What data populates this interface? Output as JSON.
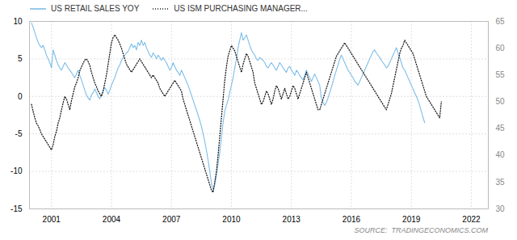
{
  "chart_data": {
    "type": "line",
    "xlim": [
      1999.9,
      2022.85
    ],
    "xticks": [
      2001,
      2004,
      2007,
      2010,
      2013,
      2016,
      2019,
      2022
    ],
    "ylim": [
      -15,
      10
    ],
    "yticks": [
      -15,
      -10,
      -5,
      0,
      5,
      10
    ],
    "y2lim": [
      30,
      65
    ],
    "y2ticks": [
      30,
      35,
      40,
      45,
      50,
      55,
      60,
      65
    ],
    "grid": true,
    "legend": "upper left",
    "annotations": [
      "SOURCE:  TRADINGECONOMICS.COM"
    ],
    "series": [
      {
        "name": "US RETAIL SALES YOY",
        "color": "#7dbde8",
        "line_style": "solid",
        "x": [
          2000,
          2000.0833,
          2000.1667,
          2000.25,
          2000.3333,
          2000.4167,
          2000.5,
          2000.5833,
          2000.6667,
          2000.75,
          2000.8333,
          2000.9167,
          2001,
          2001.0833,
          2001.1667,
          2001.25,
          2001.3333,
          2001.4167,
          2001.5,
          2001.5833,
          2001.6667,
          2001.75,
          2001.8333,
          2001.9167,
          2002,
          2002.0833,
          2002.1667,
          2002.25,
          2002.3333,
          2002.4167,
          2002.5,
          2002.5833,
          2002.6667,
          2002.75,
          2002.8333,
          2002.9167,
          2003,
          2003.0833,
          2003.1667,
          2003.25,
          2003.3333,
          2003.4167,
          2003.5,
          2003.5833,
          2003.6667,
          2003.75,
          2003.8333,
          2003.9167,
          2004,
          2004.0833,
          2004.1667,
          2004.25,
          2004.3333,
          2004.4167,
          2004.5,
          2004.5833,
          2004.6667,
          2004.75,
          2004.8333,
          2004.9167,
          2005,
          2005.0833,
          2005.1667,
          2005.25,
          2005.3333,
          2005.4167,
          2005.5,
          2005.5833,
          2005.6667,
          2005.75,
          2005.8333,
          2005.9167,
          2006,
          2006.0833,
          2006.1667,
          2006.25,
          2006.3333,
          2006.4167,
          2006.5,
          2006.5833,
          2006.6667,
          2006.75,
          2006.8333,
          2006.9167,
          2007,
          2007.0833,
          2007.1667,
          2007.25,
          2007.3333,
          2007.4167,
          2007.5,
          2007.5833,
          2007.6667,
          2007.75,
          2007.8333,
          2007.9167,
          2008,
          2008.0833,
          2008.1667,
          2008.25,
          2008.3333,
          2008.4167,
          2008.5,
          2008.5833,
          2008.6667,
          2008.75,
          2008.8333,
          2008.9167,
          2009,
          2009.0833,
          2009.1667,
          2009.25,
          2009.3333,
          2009.4167,
          2009.5,
          2009.5833,
          2009.6667,
          2009.75,
          2009.8333,
          2009.9167,
          2010,
          2010.0833,
          2010.1667,
          2010.25,
          2010.3333,
          2010.4167,
          2010.5,
          2010.5833,
          2010.6667,
          2010.75,
          2010.8333,
          2010.9167,
          2011,
          2011.0833,
          2011.1667,
          2011.25,
          2011.3333,
          2011.4167,
          2011.5,
          2011.5833,
          2011.6667,
          2011.75,
          2011.8333,
          2011.9167,
          2012,
          2012.0833,
          2012.1667,
          2012.25,
          2012.3333,
          2012.4167,
          2012.5,
          2012.5833,
          2012.6667,
          2012.75,
          2012.8333,
          2012.9167,
          2013,
          2013.0833,
          2013.1667,
          2013.25,
          2013.3333,
          2013.4167,
          2013.5,
          2013.5833,
          2013.6667,
          2013.75,
          2013.8333,
          2013.9167,
          2014,
          2014.0833,
          2014.1667,
          2014.25,
          2014.3333,
          2014.4167,
          2014.5,
          2014.5833,
          2014.6667,
          2014.75,
          2014.8333,
          2014.9167,
          2015,
          2015.0833,
          2015.1667,
          2015.25,
          2015.3333,
          2015.4167,
          2015.5,
          2015.5833,
          2015.6667,
          2015.75,
          2015.8333,
          2015.9167,
          2016,
          2016.0833,
          2016.1667,
          2016.25,
          2016.3333,
          2016.4167,
          2016.5,
          2016.5833,
          2016.6667,
          2016.75,
          2016.8333,
          2016.9167,
          2017,
          2017.0833,
          2017.1667,
          2017.25,
          2017.3333,
          2017.4167,
          2017.5,
          2017.5833,
          2017.6667,
          2017.75,
          2017.8333,
          2017.9167,
          2018,
          2018.0833,
          2018.1667,
          2018.25,
          2018.3333,
          2018.4167,
          2018.5,
          2018.5833,
          2018.6667,
          2018.75,
          2018.8333,
          2018.9167,
          2019,
          2019.0833,
          2019.1667,
          2019.25,
          2019.3333,
          2019.4167,
          2019.5,
          2019.5833,
          2019.6667
        ],
        "values": [
          9.8,
          9.2,
          8.5,
          7.8,
          7.2,
          6.8,
          6.5,
          6.8,
          6.2,
          5.5,
          5.0,
          4.5,
          3.8,
          6.2,
          5.5,
          4.8,
          4.2,
          3.8,
          3.5,
          4.0,
          4.5,
          4.2,
          3.8,
          3.5,
          3.2,
          2.8,
          2.5,
          3.0,
          3.5,
          2.8,
          2.2,
          1.5,
          0.8,
          0.2,
          -0.2,
          -0.5,
          0.2,
          0.5,
          1.0,
          0.5,
          0.0,
          -0.3,
          0.2,
          0.8,
          1.2,
          0.8,
          0.3,
          0.8,
          1.5,
          2.0,
          2.5,
          3.2,
          3.8,
          4.2,
          4.8,
          5.2,
          5.5,
          5.8,
          6.0,
          6.5,
          7.0,
          6.5,
          6.8,
          6.2,
          7.2,
          6.8,
          7.5,
          6.8,
          7.2,
          6.5,
          6.0,
          5.5,
          5.2,
          5.8,
          5.5,
          5.0,
          5.5,
          5.2,
          4.8,
          5.2,
          4.8,
          4.5,
          4.0,
          3.5,
          3.8,
          4.5,
          4.0,
          3.5,
          3.2,
          2.8,
          3.5,
          3.0,
          2.5,
          2.0,
          1.5,
          0.8,
          0.2,
          -0.5,
          -1.2,
          -1.8,
          -2.5,
          -3.2,
          -4.0,
          -5.0,
          -6.0,
          -7.2,
          -8.5,
          -10.0,
          -11.5,
          -12.5,
          -11.8,
          -10.5,
          -9.0,
          -7.5,
          -5.5,
          -3.5,
          -2.0,
          -1.2,
          -0.5,
          0.5,
          1.5,
          2.5,
          3.8,
          5.0,
          6.5,
          7.5,
          8.5,
          7.5,
          7.8,
          8.2,
          7.5,
          6.8,
          6.2,
          5.8,
          5.5,
          5.0,
          4.8,
          5.2,
          5.0,
          4.8,
          4.5,
          4.0,
          3.8,
          4.2,
          4.5,
          4.2,
          3.8,
          3.5,
          4.0,
          4.5,
          4.2,
          3.8,
          3.5,
          3.2,
          3.8,
          4.0,
          3.5,
          3.2,
          2.8,
          3.5,
          3.2,
          2.8,
          2.5,
          2.2,
          2.8,
          3.5,
          3.0,
          2.5,
          2.0,
          2.5,
          3.0,
          2.5,
          2.0,
          1.5,
          -0.2,
          -0.8,
          -1.2,
          -0.8,
          -0.2,
          0.5,
          1.2,
          2.0,
          2.8,
          3.5,
          4.2,
          5.0,
          5.5,
          5.0,
          4.5,
          4.0,
          3.5,
          3.2,
          2.8,
          2.5,
          2.0,
          1.8,
          1.5,
          2.0,
          2.5,
          3.0,
          3.5,
          4.0,
          4.5,
          5.0,
          5.5,
          6.0,
          6.2,
          5.8,
          5.5,
          5.2,
          4.8,
          4.5,
          4.2,
          3.8,
          4.0,
          4.5,
          5.0,
          5.5,
          6.0,
          6.5,
          5.8,
          5.2,
          4.5,
          3.8,
          3.5,
          3.0,
          2.5,
          2.0,
          1.5,
          1.0,
          0.5,
          0.0,
          -0.5,
          -1.2,
          -2.0,
          -2.8,
          -3.5
        ]
      },
      {
        "name": "US ISM PURCHASING MANAGER...",
        "color": "#1a1a1a",
        "line_style": "dotted",
        "axis": "y2",
        "x": [
          2000,
          2000.0833,
          2000.1667,
          2000.25,
          2000.3333,
          2000.4167,
          2000.5,
          2000.5833,
          2000.6667,
          2000.75,
          2000.8333,
          2000.9167,
          2001,
          2001.0833,
          2001.1667,
          2001.25,
          2001.3333,
          2001.4167,
          2001.5,
          2001.5833,
          2001.6667,
          2001.75,
          2001.8333,
          2001.9167,
          2002,
          2002.0833,
          2002.1667,
          2002.25,
          2002.3333,
          2002.4167,
          2002.5,
          2002.5833,
          2002.6667,
          2002.75,
          2002.8333,
          2002.9167,
          2003,
          2003.0833,
          2003.1667,
          2003.25,
          2003.3333,
          2003.4167,
          2003.5,
          2003.5833,
          2003.6667,
          2003.75,
          2003.8333,
          2003.9167,
          2004,
          2004.0833,
          2004.1667,
          2004.25,
          2004.3333,
          2004.4167,
          2004.5,
          2004.5833,
          2004.6667,
          2004.75,
          2004.8333,
          2004.9167,
          2005,
          2005.0833,
          2005.1667,
          2005.25,
          2005.3333,
          2005.4167,
          2005.5,
          2005.5833,
          2005.6667,
          2005.75,
          2005.8333,
          2005.9167,
          2006,
          2006.0833,
          2006.1667,
          2006.25,
          2006.3333,
          2006.4167,
          2006.5,
          2006.5833,
          2006.6667,
          2006.75,
          2006.8333,
          2006.9167,
          2007,
          2007.0833,
          2007.1667,
          2007.25,
          2007.3333,
          2007.4167,
          2007.5,
          2007.5833,
          2007.6667,
          2007.75,
          2007.8333,
          2007.9167,
          2008,
          2008.0833,
          2008.1667,
          2008.25,
          2008.3333,
          2008.4167,
          2008.5,
          2008.5833,
          2008.6667,
          2008.75,
          2008.8333,
          2008.9167,
          2009,
          2009.0833,
          2009.1667,
          2009.25,
          2009.3333,
          2009.4167,
          2009.5,
          2009.5833,
          2009.6667,
          2009.75,
          2009.8333,
          2009.9167,
          2010,
          2010.0833,
          2010.1667,
          2010.25,
          2010.3333,
          2010.4167,
          2010.5,
          2010.5833,
          2010.6667,
          2010.75,
          2010.8333,
          2010.9167,
          2011,
          2011.0833,
          2011.1667,
          2011.25,
          2011.3333,
          2011.4167,
          2011.5,
          2011.5833,
          2011.6667,
          2011.75,
          2011.8333,
          2011.9167,
          2012,
          2012.0833,
          2012.1667,
          2012.25,
          2012.3333,
          2012.4167,
          2012.5,
          2012.5833,
          2012.6667,
          2012.75,
          2012.8333,
          2012.9167,
          2013,
          2013.0833,
          2013.1667,
          2013.25,
          2013.3333,
          2013.4167,
          2013.5,
          2013.5833,
          2013.6667,
          2013.75,
          2013.8333,
          2013.9167,
          2014,
          2014.0833,
          2014.1667,
          2014.25,
          2014.3333,
          2014.4167,
          2014.5,
          2014.5833,
          2014.6667,
          2014.75,
          2014.8333,
          2014.9167,
          2015,
          2015.0833,
          2015.1667,
          2015.25,
          2015.3333,
          2015.4167,
          2015.5,
          2015.5833,
          2015.6667,
          2015.75,
          2015.8333,
          2015.9167,
          2016,
          2016.0833,
          2016.1667,
          2016.25,
          2016.3333,
          2016.4167,
          2016.5,
          2016.5833,
          2016.6667,
          2016.75,
          2016.8333,
          2016.9167,
          2017,
          2017.0833,
          2017.1667,
          2017.25,
          2017.3333,
          2017.4167,
          2017.5,
          2017.5833,
          2017.6667,
          2017.75,
          2017.8333,
          2017.9167,
          2018,
          2018.0833,
          2018.1667,
          2018.25,
          2018.3333,
          2018.4167,
          2018.5,
          2018.5833,
          2018.6667,
          2018.75,
          2018.8333,
          2018.9167,
          2019,
          2019.0833,
          2019.1667,
          2019.25,
          2019.3333,
          2019.4167,
          2019.5,
          2019.5833,
          2019.6667,
          2019.75,
          2019.8333,
          2019.9167,
          2020,
          2020.0833,
          2020.1667,
          2020.25,
          2020.3333,
          2020.4167,
          2020.5
        ],
        "values": [
          49.5,
          48.2,
          47.0,
          46.0,
          45.5,
          44.8,
          44.0,
          43.5,
          43.0,
          42.5,
          42.0,
          41.5,
          41.0,
          42.0,
          43.5,
          44.5,
          46.0,
          47.0,
          48.5,
          49.8,
          51.0,
          50.5,
          49.5,
          48.5,
          50.2,
          51.5,
          52.8,
          53.5,
          54.5,
          55.8,
          56.5,
          57.2,
          57.8,
          58.0,
          57.5,
          56.8,
          55.5,
          54.5,
          53.5,
          52.8,
          52.0,
          51.5,
          51.0,
          52.0,
          53.5,
          55.0,
          57.0,
          59.0,
          61.0,
          62.0,
          62.5,
          62.0,
          61.5,
          60.8,
          60.0,
          59.0,
          58.0,
          57.0,
          56.5,
          56.0,
          55.5,
          56.0,
          56.5,
          57.0,
          57.5,
          58.0,
          57.5,
          57.0,
          56.5,
          56.0,
          55.5,
          55.0,
          54.5,
          55.0,
          54.5,
          54.0,
          53.5,
          52.5,
          52.0,
          51.5,
          51.0,
          51.5,
          52.0,
          52.5,
          53.0,
          53.5,
          54.0,
          53.5,
          53.0,
          52.5,
          52.0,
          50.5,
          49.5,
          48.5,
          47.5,
          46.5,
          45.5,
          44.5,
          43.5,
          42.5,
          41.5,
          40.5,
          39.5,
          38.5,
          37.5,
          36.5,
          35.5,
          34.5,
          33.5,
          33.1,
          35.0,
          37.0,
          40.0,
          43.5,
          47.0,
          50.5,
          54.0,
          56.5,
          58.5,
          59.5,
          60.5,
          60.0,
          59.5,
          58.5,
          57.5,
          56.5,
          55.5,
          57.0,
          58.0,
          59.0,
          58.5,
          57.5,
          56.5,
          55.5,
          53.5,
          52.5,
          51.5,
          50.5,
          49.5,
          50.0,
          51.0,
          52.0,
          51.5,
          50.5,
          49.5,
          50.5,
          52.0,
          53.0,
          52.5,
          51.5,
          50.5,
          51.5,
          52.5,
          51.5,
          50.5,
          51.0,
          52.0,
          53.0,
          52.5,
          51.5,
          50.5,
          51.5,
          52.5,
          53.5,
          54.5,
          55.5,
          54.5,
          53.5,
          52.5,
          51.5,
          50.5,
          49.5,
          48.5,
          48.5,
          49.5,
          50.5,
          51.5,
          52.5,
          53.5,
          54.5,
          55.5,
          56.5,
          57.5,
          58.5,
          59.0,
          59.5,
          60.0,
          60.5,
          61.0,
          60.5,
          60.0,
          59.5,
          59.0,
          58.5,
          58.0,
          57.5,
          57.0,
          56.5,
          56.0,
          55.5,
          55.0,
          54.5,
          54.0,
          53.5,
          53.0,
          52.5,
          52.0,
          51.5,
          51.0,
          50.5,
          50.0,
          49.5,
          49.0,
          48.5,
          49.5,
          50.5,
          51.5,
          53.0,
          54.5,
          56.0,
          57.5,
          59.0,
          60.0,
          60.5,
          61.5,
          61.0,
          60.5,
          60.0,
          59.5,
          59.0,
          58.0,
          57.0,
          56.0,
          55.0,
          54.0,
          53.0,
          52.0,
          51.0,
          50.5,
          50.0,
          49.5,
          49.0,
          48.5,
          48.0,
          47.5,
          47.0,
          50.0
        ]
      }
    ]
  }
}
